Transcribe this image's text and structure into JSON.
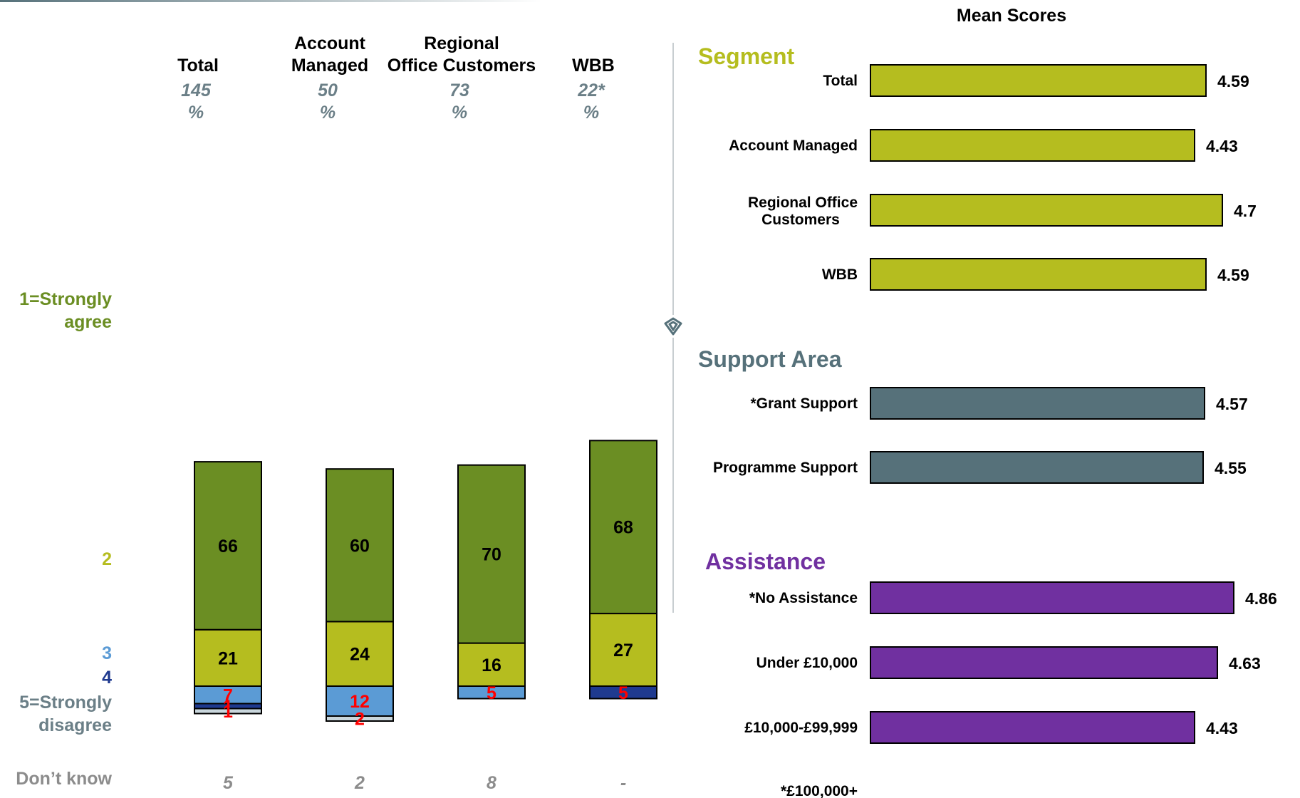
{
  "colors": {
    "strongly_agree": "#6b8e23",
    "agree": "#b5bd1f",
    "neutral": "#5b9bd5",
    "disagree": "#1f3a8f",
    "strongly_disagree": "#c9d6dc",
    "segment": "#b5bd1f",
    "support": "#56717a",
    "assistance": "#7030a0",
    "base_text": "#6b7f87",
    "small_label": "#ff0000",
    "dont_know": "#8c8c8c"
  },
  "chart_data": [
    {
      "type": "bar",
      "stacked": true,
      "orientation": "vertical",
      "columns": [
        {
          "label": "Total",
          "base": "145",
          "unit": "%",
          "values": [
            66,
            21,
            7,
            1,
            1
          ],
          "dont_know": "5"
        },
        {
          "label": "Account Managed",
          "base": "50",
          "unit": "%",
          "values": [
            60,
            24,
            12,
            0,
            2
          ],
          "dont_know": "2"
        },
        {
          "label": "Regional Office Customers",
          "base": "73",
          "unit": "%",
          "values": [
            70,
            16,
            5,
            0,
            0
          ],
          "dont_know": "8"
        },
        {
          "label": "WBB",
          "base": "22*",
          "unit": "%",
          "values": [
            68,
            27,
            0,
            5,
            0
          ],
          "dont_know": "-"
        }
      ],
      "series": [
        {
          "name": "1=Strongly agree"
        },
        {
          "name": "2"
        },
        {
          "name": "3"
        },
        {
          "name": "4"
        },
        {
          "name": "5=Strongly disagree"
        }
      ],
      "dont_know_label": "Don’t know",
      "ylim": [
        0,
        100
      ]
    },
    {
      "type": "bar",
      "orientation": "horizontal",
      "title": "Mean Scores",
      "xlim": [
        0,
        5
      ],
      "groups": [
        {
          "name": "Segment",
          "color_key": "segment",
          "items": [
            {
              "label": "Total",
              "value": 4.59
            },
            {
              "label": "Account Managed",
              "value": 4.43
            },
            {
              "label": "Regional Office Customers",
              "value": 4.7
            },
            {
              "label": "WBB",
              "value": 4.59
            }
          ]
        },
        {
          "name": "Support Area",
          "color_key": "support",
          "items": [
            {
              "label": "*Grant Support",
              "value": 4.57
            },
            {
              "label": "Programme Support",
              "value": 4.55
            }
          ]
        },
        {
          "name": "Assistance",
          "color_key": "assistance",
          "items": [
            {
              "label": "*No Assistance",
              "value": 4.86
            },
            {
              "label": "Under £10,000",
              "value": 4.63
            },
            {
              "label": "£10,000-£99,999",
              "value": 4.43
            },
            {
              "label": "*£100,000+",
              "value": null
            }
          ]
        }
      ]
    }
  ]
}
